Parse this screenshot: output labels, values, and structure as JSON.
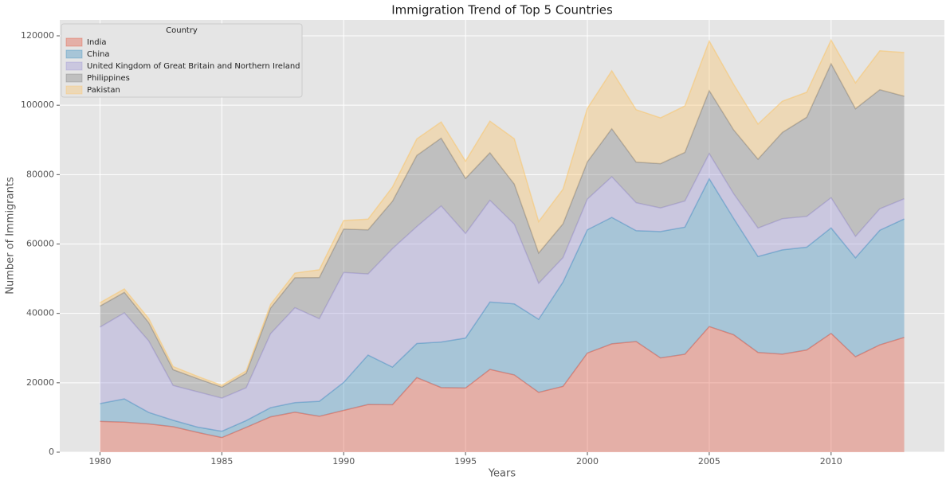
{
  "chart_data": {
    "type": "stacked-area",
    "title": "Immigration Trend of Top 5 Countries",
    "xlabel": "Years",
    "ylabel": "Number of Immigrants",
    "legend_title": "Country",
    "legend": "upper left",
    "grid": true,
    "alpha": 0.35,
    "x": [
      1980,
      1981,
      1982,
      1983,
      1984,
      1985,
      1986,
      1987,
      1988,
      1989,
      1990,
      1991,
      1992,
      1993,
      1994,
      1995,
      1996,
      1997,
      1998,
      1999,
      2000,
      2001,
      2002,
      2003,
      2004,
      2005,
      2006,
      2007,
      2008,
      2009,
      2010,
      2011,
      2012,
      2013
    ],
    "xlim": [
      1978.35,
      2014.65
    ],
    "xticks": [
      1980,
      1985,
      1990,
      1995,
      2000,
      2005,
      2010
    ],
    "ylim": [
      0,
      124590
    ],
    "yticks": [
      0,
      20000,
      40000,
      60000,
      80000,
      100000,
      120000
    ],
    "series": [
      {
        "name": "India",
        "color": "#E24A33",
        "values": [
          8880,
          8670,
          8147,
          7338,
          5704,
          4211,
          7150,
          10189,
          11522,
          10343,
          12041,
          13734,
          13673,
          21496,
          18620,
          18489,
          23859,
          22268,
          17241,
          18974,
          28572,
          31223,
          31889,
          27155,
          28235,
          36210,
          33848,
          28742,
          28261,
          29456,
          34235,
          27509,
          30933,
          33087
        ]
      },
      {
        "name": "China",
        "color": "#348ABD",
        "values": [
          5123,
          6682,
          3308,
          1863,
          1527,
          1816,
          1960,
          2643,
          2758,
          4323,
          8076,
          14255,
          10846,
          9817,
          13128,
          14398,
          19415,
          20475,
          21049,
          30069,
          35529,
          36434,
          31961,
          36439,
          36619,
          42584,
          33518,
          27642,
          30037,
          29622,
          30391,
          28502,
          33024,
          34129
        ]
      },
      {
        "name": "United Kingdom of Great Britain and Northern Ireland",
        "color": "#988ED5",
        "values": [
          22045,
          24796,
          20620,
          10015,
          10170,
          9564,
          9470,
          21337,
          27359,
          23795,
          31668,
          23380,
          34123,
          33720,
          39231,
          30145,
          29322,
          22965,
          10367,
          7045,
          8840,
          11728,
          8046,
          6797,
          7533,
          7258,
          7140,
          8216,
          8979,
          8876,
          8724,
          6204,
          6195,
          5827
        ]
      },
      {
        "name": "Philippines",
        "color": "#777777",
        "values": [
          6051,
          5921,
          5249,
          4562,
          3801,
          3150,
          4166,
          7360,
          8639,
          11865,
          12509,
          12718,
          13670,
          20479,
          19532,
          15864,
          13692,
          11549,
          8735,
          9734,
          10763,
          13836,
          11707,
          12758,
          14004,
          18139,
          18400,
          19837,
          24887,
          28573,
          38617,
          36765,
          34315,
          29544
        ]
      },
      {
        "name": "Pakistan",
        "color": "#FBC15E",
        "values": [
          978,
          972,
          1201,
          900,
          668,
          514,
          691,
          1072,
          1334,
          2261,
          2470,
          3079,
          4071,
          4777,
          4666,
          4994,
          9125,
          13073,
          9068,
          9979,
          15400,
          16708,
          15110,
          13205,
          13399,
          14314,
          13127,
          10124,
          8994,
          7217,
          6811,
          7468,
          11227,
          12603
        ]
      }
    ]
  }
}
